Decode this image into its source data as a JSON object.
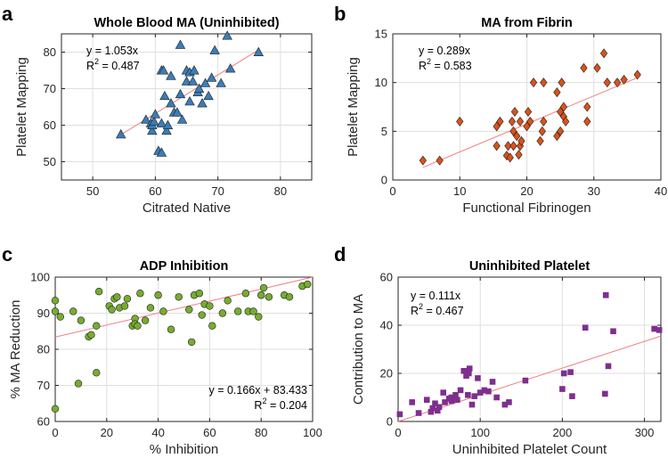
{
  "chart_data": [
    {
      "type": "scatter",
      "panel_label": "a",
      "title": "Whole Blood MA (Uninhibited)",
      "xlabel": "Citrated Native",
      "ylabel": "Platelet Mapping",
      "xlim": [
        45,
        85
      ],
      "ylim": [
        45,
        85
      ],
      "xticks": [
        50,
        60,
        70,
        80
      ],
      "yticks": [
        50,
        60,
        70,
        80
      ],
      "marker": "triangle",
      "color": "#3A7DB8",
      "fit": {
        "x1": 54.5,
        "y1": 57.4,
        "x2": 76.5,
        "y2": 80.6,
        "color": "#F08080"
      },
      "equation_line1": "y = 1.053x",
      "equation_line2_prefix": "R",
      "equation_line2_sup": "2",
      "equation_line2_suffix": " = 0.487",
      "annotation_position": "top-left",
      "x": [
        54.5,
        58.5,
        59.3,
        59.5,
        59.5,
        59.8,
        60.0,
        60.5,
        61.0,
        61.0,
        61.0,
        61.3,
        61.5,
        61.8,
        62.0,
        62.5,
        62.5,
        63.0,
        63.5,
        64.0,
        64.0,
        64.3,
        65.0,
        65.0,
        65.5,
        65.5,
        66.0,
        66.2,
        66.8,
        67.0,
        67.5,
        68.0,
        68.5,
        69.0,
        69.5,
        70.5,
        71.5,
        72.0,
        76.5
      ],
      "y": [
        57.5,
        61.5,
        60.5,
        58.5,
        60.0,
        61.0,
        63.0,
        53.0,
        52.5,
        75.0,
        60.5,
        75.0,
        68.0,
        58.5,
        60.0,
        66.0,
        73.5,
        63.5,
        63.5,
        68.5,
        82.0,
        61.5,
        72.0,
        75.0,
        74.5,
        66.5,
        72.0,
        75.0,
        69.0,
        70.0,
        66.0,
        71.5,
        68.0,
        73.0,
        80.5,
        71.5,
        84.5,
        75.5,
        80.0
      ]
    },
    {
      "type": "scatter",
      "panel_label": "b",
      "title": "MA from Fibrin",
      "xlabel": "Functional Fibrinogen",
      "ylabel": "Platelet Mapping",
      "xlim": [
        0,
        40
      ],
      "ylim": [
        0,
        15
      ],
      "xticks": [
        0,
        10,
        20,
        30,
        40
      ],
      "yticks": [
        0,
        5,
        10,
        15
      ],
      "marker": "diamond",
      "color": "#D95319",
      "fit": {
        "x1": 4.5,
        "y1": 1.3,
        "x2": 36.5,
        "y2": 10.5,
        "color": "#F08080"
      },
      "equation_line1": "y = 0.289x",
      "equation_line2_prefix": "R",
      "equation_line2_sup": "2",
      "equation_line2_suffix": " = 0.583",
      "annotation_position": "top-left",
      "x": [
        4.5,
        7.0,
        10.0,
        15.5,
        15.5,
        16.0,
        17.0,
        17.2,
        17.5,
        17.8,
        18.0,
        18.0,
        18.2,
        18.5,
        18.8,
        19.0,
        19.0,
        19.2,
        20.0,
        20.2,
        20.5,
        21.0,
        22.0,
        22.3,
        22.5,
        22.5,
        24.5,
        24.5,
        25.0,
        25.0,
        25.2,
        25.5,
        25.5,
        25.8,
        28.5,
        29.0,
        29.0,
        30.5,
        31.5,
        32.0,
        33.5,
        34.5,
        36.5
      ],
      "y": [
        2.0,
        2.0,
        6.0,
        3.5,
        5.5,
        6.0,
        2.5,
        3.5,
        2.3,
        6.0,
        3.5,
        5.0,
        7.0,
        4.5,
        2.6,
        3.5,
        6.0,
        4.0,
        5.5,
        7.0,
        6.0,
        10.0,
        4.0,
        5.0,
        6.0,
        10.0,
        9.0,
        4.5,
        5.0,
        7.0,
        10.0,
        7.5,
        6.5,
        6.0,
        11.5,
        7.5,
        6.0,
        11.5,
        13.0,
        10.0,
        10.0,
        10.3,
        10.8
      ]
    },
    {
      "type": "scatter",
      "panel_label": "c",
      "title": "ADP Inhibition",
      "xlabel": "% Inhibition",
      "ylabel": "% MA Reduction",
      "xlim": [
        0,
        100
      ],
      "ylim": [
        60,
        100
      ],
      "xticks": [
        0,
        20,
        40,
        60,
        80,
        100
      ],
      "yticks": [
        60,
        70,
        80,
        90,
        100
      ],
      "marker": "circle",
      "color": "#77AC30",
      "fit": {
        "x1": 0,
        "y1": 83.4,
        "x2": 100,
        "y2": 100.0,
        "color": "#F08080"
      },
      "equation_line1": "y = 0.166x + 83.433",
      "equation_line2_prefix": "R",
      "equation_line2_sup": "2",
      "equation_line2_suffix": " = 0.204",
      "annotation_position": "bottom-right",
      "x": [
        0,
        0,
        0,
        2,
        7,
        9,
        10,
        13,
        14,
        16,
        16,
        17,
        21,
        22,
        23,
        24,
        25,
        27,
        28,
        30,
        31,
        31,
        32,
        33,
        35,
        37,
        40,
        42,
        45,
        48,
        52,
        53,
        54,
        56,
        57,
        58,
        60,
        61,
        65,
        67,
        71,
        74,
        75,
        77,
        79,
        80,
        81,
        83,
        89,
        91,
        96,
        98
      ],
      "y": [
        63.5,
        93.5,
        90.5,
        89.0,
        90.5,
        70.5,
        88.0,
        83.5,
        84.0,
        86.5,
        73.5,
        96.0,
        92.0,
        91.0,
        94.0,
        94.5,
        91.5,
        92.0,
        94.0,
        86.5,
        88.5,
        87.0,
        86.5,
        95.5,
        88.0,
        91.5,
        95.0,
        90.5,
        85.5,
        94.5,
        91.0,
        82.0,
        95.0,
        95.5,
        89.5,
        92.5,
        92.0,
        86.5,
        90.0,
        93.5,
        90.5,
        95.5,
        90.5,
        90.5,
        89.0,
        95.0,
        97.0,
        94.5,
        95.0,
        94.5,
        97.5,
        98.0
      ]
    },
    {
      "type": "scatter",
      "panel_label": "d",
      "title": "Uninhibited Platelet",
      "xlabel": "Uninhibited Platelet Count",
      "ylabel": "Contribution to MA",
      "xlim": [
        0,
        320
      ],
      "ylim": [
        0,
        60
      ],
      "xticks": [
        0,
        100,
        200,
        300
      ],
      "yticks": [
        0,
        20,
        40,
        60
      ],
      "marker": "square",
      "color": "#7E2F8E",
      "fit": {
        "x1": 0,
        "y1": 0,
        "x2": 320,
        "y2": 35.5,
        "color": "#F08080"
      },
      "equation_line1": "y = 0.111x",
      "equation_line2_prefix": "R",
      "equation_line2_sup": "2",
      "equation_line2_suffix": " = 0.467",
      "annotation_position": "top-left",
      "x": [
        2,
        17,
        25,
        35,
        40,
        42,
        45,
        48,
        50,
        55,
        57,
        62,
        65,
        65,
        70,
        72,
        76,
        80,
        83,
        85,
        86,
        87,
        90,
        93,
        97,
        100,
        105,
        110,
        115,
        120,
        130,
        135,
        155,
        200,
        202,
        210,
        212,
        228,
        252,
        253,
        256,
        262,
        312,
        318
      ],
      "y": [
        3,
        8,
        3.5,
        9,
        4,
        5.5,
        7.5,
        4.5,
        6,
        12,
        8,
        9.5,
        10,
        8.5,
        11,
        9,
        13,
        21,
        19,
        11,
        20,
        22,
        7,
        10.5,
        18,
        12,
        13,
        12.5,
        16.5,
        10,
        7,
        8,
        17,
        13.5,
        20,
        20.5,
        10.5,
        39,
        11.5,
        52.5,
        23,
        37.5,
        38.5,
        38
      ]
    }
  ]
}
